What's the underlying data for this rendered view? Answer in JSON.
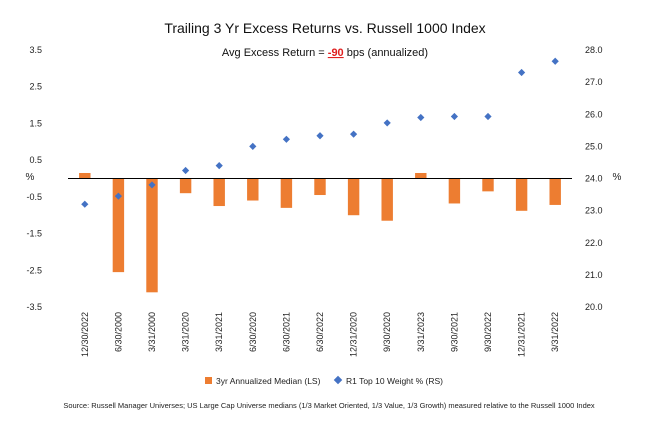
{
  "chart_data": {
    "type": "bar+scatter",
    "title": "Trailing 3 Yr Excess Returns vs. Russell 1000 Index",
    "subtitle_prefix": "Avg Excess Return = ",
    "subtitle_value": "-90",
    "subtitle_suffix": " bps (annualized)",
    "categories": [
      "12/30/2022",
      "6/30/2000",
      "3/31/2000",
      "3/31/2020",
      "3/31/2021",
      "6/30/2020",
      "6/30/2021",
      "6/30/2022",
      "12/31/2020",
      "9/30/2020",
      "3/31/2023",
      "9/30/2021",
      "9/30/2022",
      "12/31/2021",
      "3/31/2022"
    ],
    "y_left": {
      "label": "%",
      "ylim": [
        -3.5,
        3.5
      ],
      "ticks": [
        "3.5",
        "2.5",
        "1.5",
        "0.5",
        "-0.5",
        "-1.5",
        "-2.5",
        "-3.5"
      ]
    },
    "y_right": {
      "label": "%",
      "ylim": [
        20.0,
        28.0
      ],
      "ticks": [
        "28.0",
        "27.0",
        "26.0",
        "25.0",
        "24.0",
        "23.0",
        "22.0",
        "21.0",
        "20.0"
      ]
    },
    "series": [
      {
        "name": "3yr Annualized Median (LS)",
        "type": "bar",
        "axis": "left",
        "color": "#ed7d31",
        "values": [
          0.15,
          -2.55,
          -3.1,
          -0.4,
          -0.75,
          -0.6,
          -0.8,
          -0.45,
          -1.0,
          -1.15,
          0.15,
          -0.68,
          -0.35,
          -0.88,
          -0.72
        ]
      },
      {
        "name": "R1 Top 10 Weight % (RS)",
        "type": "scatter",
        "axis": "right",
        "color": "#4472c4",
        "values": [
          23.2,
          23.45,
          23.8,
          24.25,
          24.4,
          25.0,
          25.22,
          25.33,
          25.38,
          25.73,
          25.9,
          25.93,
          25.93,
          27.3,
          27.65
        ]
      }
    ],
    "grid": false,
    "legend": "bottom",
    "source": "Source: Russell Manager Universes; US Large Cap Universe medians (1/3 Market Oriented, 1/3 Value, 1/3 Growth) measured relative to the Russell 1000 Index"
  }
}
